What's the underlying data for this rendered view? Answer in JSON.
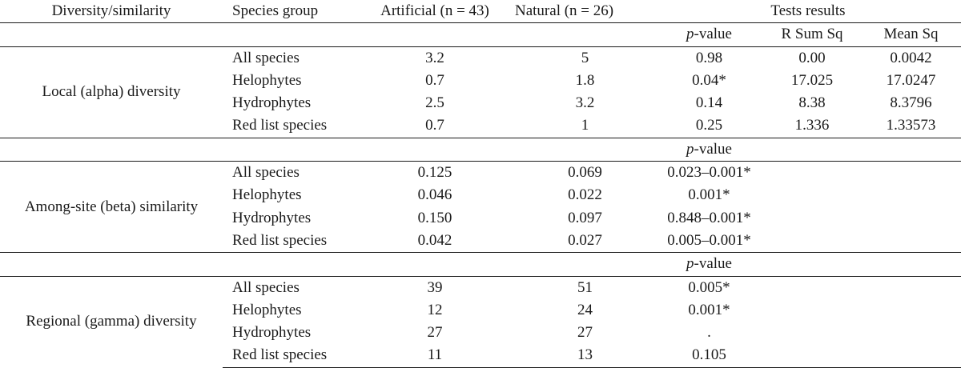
{
  "header": {
    "col1": "Diversity/similarity",
    "col2": "Species group",
    "col3": "Artificial (n = 43)",
    "col4": "Natural (n = 26)",
    "tests": "Tests results"
  },
  "subheaders": {
    "p_italic": "p",
    "p_rest": "-value",
    "rsum": "R Sum Sq",
    "mean": "Mean Sq"
  },
  "sections": [
    {
      "label": "Local (alpha) diversity",
      "rows": [
        {
          "group": "All species",
          "artificial": "3.2",
          "natural": "5",
          "p": "0.98",
          "rsum": "0.00",
          "mean": "0.0042"
        },
        {
          "group": "Helophytes",
          "artificial": "0.7",
          "natural": "1.8",
          "p": "0.04*",
          "rsum": "17.025",
          "mean": "17.0247"
        },
        {
          "group": "Hydrophytes",
          "artificial": "2.5",
          "natural": "3.2",
          "p": "0.14",
          "rsum": "8.38",
          "mean": "8.3796"
        },
        {
          "group": "Red list species",
          "artificial": "0.7",
          "natural": "1",
          "p": "0.25",
          "rsum": "1.336",
          "mean": "1.33573"
        }
      ]
    },
    {
      "label": "Among-site (beta) similarity",
      "rows": [
        {
          "group": "All species",
          "artificial": "0.125",
          "natural": "0.069",
          "p": "0.023–0.001*"
        },
        {
          "group": "Helophytes",
          "artificial": "0.046",
          "natural": "0.022",
          "p": "0.001*"
        },
        {
          "group": "Hydrophytes",
          "artificial": "0.150",
          "natural": "0.097",
          "p": "0.848–0.001*"
        },
        {
          "group": "Red list species",
          "artificial": "0.042",
          "natural": "0.027",
          "p": "0.005–0.001*"
        }
      ]
    },
    {
      "label": "Regional (gamma) diversity",
      "rows": [
        {
          "group": "All species",
          "artificial": "39",
          "natural": "51",
          "p": "0.005*"
        },
        {
          "group": "Helophytes",
          "artificial": "12",
          "natural": "24",
          "p": "0.001*"
        },
        {
          "group": "Hydrophytes",
          "artificial": "27",
          "natural": "27",
          "p": "."
        },
        {
          "group": "Red list species",
          "artificial": "11",
          "natural": "13",
          "p": "0.105"
        }
      ]
    }
  ]
}
